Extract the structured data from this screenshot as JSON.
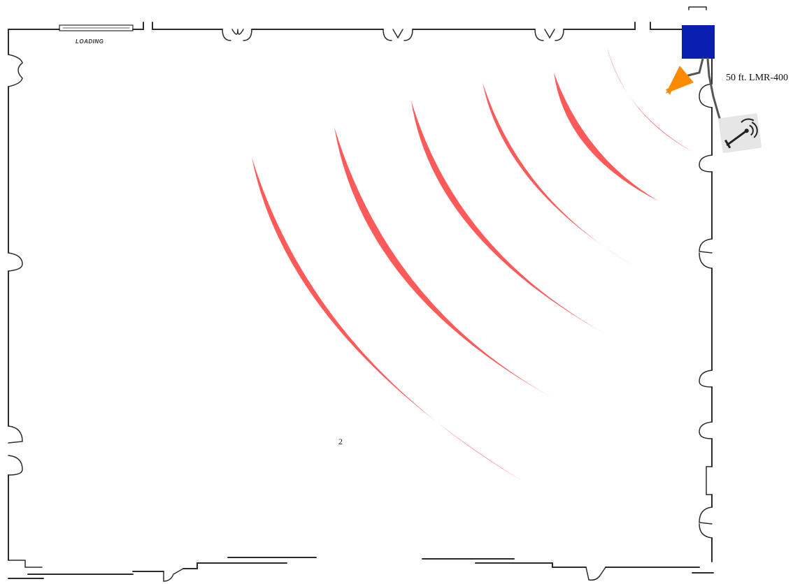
{
  "labels": {
    "loading": "LOADING",
    "cable": "50 ft. LMR-400",
    "zone_number": "2"
  },
  "colors": {
    "wall": "#2b2b2b",
    "signal_arc": "#ff5a5a",
    "access_point": "#0a1fb0",
    "antenna": "#ff8a00",
    "cable": "#555555",
    "sensor_box": "#e6e6e6"
  },
  "icons": {
    "access_point": "access-point-box-icon",
    "antenna": "directional-antenna-icon",
    "sensor": "wireless-sensor-icon"
  },
  "signal": {
    "arc_count": 6
  }
}
